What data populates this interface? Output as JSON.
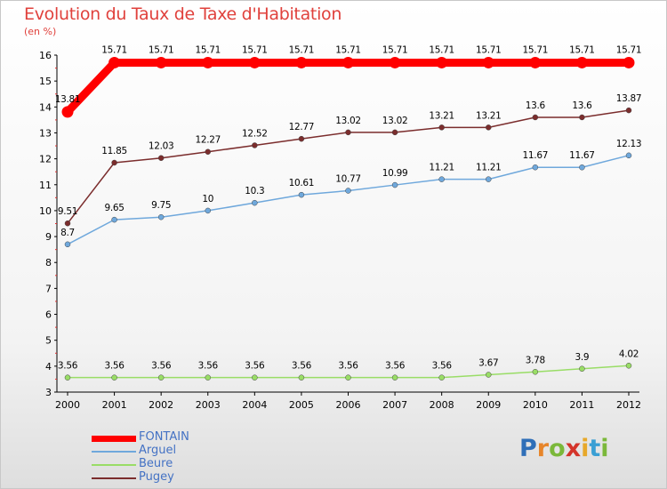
{
  "chart_data": {
    "type": "line",
    "title": "Evolution du Taux de Taxe d'Habitation",
    "subtitle": "(en %)",
    "xlabel": "",
    "ylabel": "",
    "x": [
      "2000",
      "2001",
      "2002",
      "2003",
      "2004",
      "2005",
      "2006",
      "2007",
      "2008",
      "2009",
      "2010",
      "2011",
      "2012"
    ],
    "ylim": [
      3,
      16
    ],
    "yticks": [
      3,
      4,
      5,
      6,
      7,
      8,
      9,
      10,
      11,
      12,
      13,
      14,
      15,
      16
    ],
    "grid": false,
    "legend_position": "bottom-left",
    "series": [
      {
        "name": "FONTAIN",
        "color": "#ff0000",
        "values": [
          13.81,
          15.71,
          15.71,
          15.71,
          15.71,
          15.71,
          15.71,
          15.71,
          15.71,
          15.71,
          15.71,
          15.71,
          15.71
        ],
        "labels": [
          "13.81",
          "15.71",
          "15.71",
          "15.71",
          "15.71",
          "15.71",
          "15.71",
          "15.71",
          "15.71",
          "15.71",
          "15.71",
          "15.71",
          "15.71"
        ]
      },
      {
        "name": "Arguel",
        "color": "#6fa8dc",
        "values": [
          8.7,
          9.65,
          9.75,
          10,
          10.3,
          10.61,
          10.77,
          10.99,
          11.21,
          11.21,
          11.67,
          11.67,
          12.13
        ],
        "labels": [
          "8.7",
          "9.65",
          "9.75",
          "10",
          "10.3",
          "10.61",
          "10.77",
          "10.99",
          "11.21",
          "11.21",
          "11.67",
          "11.67",
          "12.13"
        ]
      },
      {
        "name": "Beure",
        "color": "#99dd66",
        "values": [
          3.56,
          3.56,
          3.56,
          3.56,
          3.56,
          3.56,
          3.56,
          3.56,
          3.56,
          3.67,
          3.78,
          3.9,
          4.02
        ],
        "labels": [
          "3.56",
          "3.56",
          "3.56",
          "3.56",
          "3.56",
          "3.56",
          "3.56",
          "3.56",
          "3.56",
          "3.67",
          "3.78",
          "3.9",
          "4.02"
        ]
      },
      {
        "name": "Pugey",
        "color": "#7b2d2d",
        "values": [
          9.51,
          11.85,
          12.03,
          12.27,
          12.52,
          12.77,
          13.02,
          13.02,
          13.21,
          13.21,
          13.6,
          13.6,
          13.87
        ],
        "labels": [
          "9.51",
          "11.85",
          "12.03",
          "12.27",
          "12.52",
          "12.77",
          "13.02",
          "13.02",
          "13.21",
          "13.21",
          "13.6",
          "13.6",
          "13.87"
        ]
      }
    ]
  },
  "logo": {
    "letters": [
      "P",
      "r",
      "o",
      "x",
      "i",
      "t",
      "i"
    ],
    "colors": [
      "#2f6fb8",
      "#e7852a",
      "#7bb83a",
      "#d4342a",
      "#e7a82a",
      "#3a9fd4",
      "#7bb83a"
    ]
  }
}
